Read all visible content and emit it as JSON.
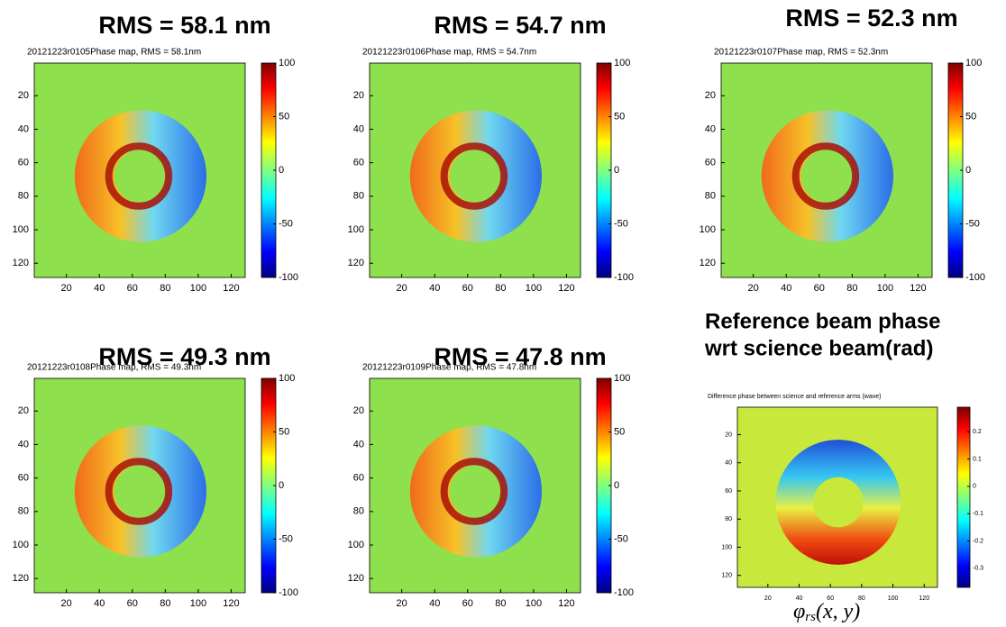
{
  "panels": [
    {
      "title": "RMS = 58.1 nm",
      "subtitle": "20121223r0105Phase map, RMS = 58.1nm",
      "xlim": [
        0.5,
        128.5
      ],
      "ylim": [
        0.5,
        128.5
      ],
      "xticks": [
        20,
        40,
        60,
        80,
        100,
        120
      ],
      "yticks": [
        20,
        40,
        60,
        80,
        100,
        120
      ],
      "colorbar_lim": [
        -100,
        100
      ],
      "colorbar_ticks": [
        100,
        50,
        0,
        -50,
        -100
      ]
    },
    {
      "title": "RMS = 54.7 nm",
      "subtitle": "20121223r0106Phase map, RMS = 54.7nm",
      "xlim": [
        0.5,
        128.5
      ],
      "ylim": [
        0.5,
        128.5
      ],
      "xticks": [
        20,
        40,
        60,
        80,
        100,
        120
      ],
      "yticks": [
        20,
        40,
        60,
        80,
        100,
        120
      ],
      "colorbar_lim": [
        -100,
        100
      ],
      "colorbar_ticks": [
        100,
        50,
        0,
        -50,
        -100
      ]
    },
    {
      "title": "RMS = 52.3 nm",
      "subtitle": "20121223r0107Phase map, RMS = 52.3nm",
      "xlim": [
        0.5,
        128.5
      ],
      "ylim": [
        0.5,
        128.5
      ],
      "xticks": [
        20,
        40,
        60,
        80,
        100,
        120
      ],
      "yticks": [
        20,
        40,
        60,
        80,
        100,
        120
      ],
      "colorbar_lim": [
        -100,
        100
      ],
      "colorbar_ticks": [
        100,
        50,
        0,
        -50,
        -100
      ]
    },
    {
      "title": "RMS = 49.3 nm",
      "subtitle": "20121223r0108Phase map, RMS = 49.3nm",
      "xlim": [
        0.5,
        128.5
      ],
      "ylim": [
        0.5,
        128.5
      ],
      "xticks": [
        20,
        40,
        60,
        80,
        100,
        120
      ],
      "yticks": [
        20,
        40,
        60,
        80,
        100,
        120
      ],
      "colorbar_lim": [
        -100,
        100
      ],
      "colorbar_ticks": [
        100,
        50,
        0,
        -50,
        -100
      ]
    },
    {
      "title": "RMS = 47.8 nm",
      "subtitle": "20121223r0109Phase map, RMS = 47.8nm",
      "xlim": [
        0.5,
        128.5
      ],
      "ylim": [
        0.5,
        128.5
      ],
      "xticks": [
        20,
        40,
        60,
        80,
        100,
        120
      ],
      "yticks": [
        20,
        40,
        60,
        80,
        100,
        120
      ],
      "colorbar_lim": [
        -100,
        100
      ],
      "colorbar_ticks": [
        100,
        50,
        0,
        -50,
        -100
      ]
    }
  ],
  "reference": {
    "title_lines": [
      "Reference beam phase",
      "wrt science beam(rad)"
    ],
    "subtitle": "Difference phase between science and reference arms (wave)",
    "xlim": [
      0.5,
      128.5
    ],
    "ylim": [
      0.5,
      128.5
    ],
    "xticks": [
      20,
      40,
      60,
      80,
      100,
      120
    ],
    "yticks": [
      20,
      40,
      60,
      80,
      100,
      120
    ],
    "colorbar_lim": [
      -0.37,
      0.29
    ],
    "colorbar_ticks": [
      0.2,
      0.1,
      0,
      -0.1,
      -0.2,
      -0.3
    ],
    "symbol": "φ",
    "subscript": "rs",
    "args": "(x, y)"
  }
}
